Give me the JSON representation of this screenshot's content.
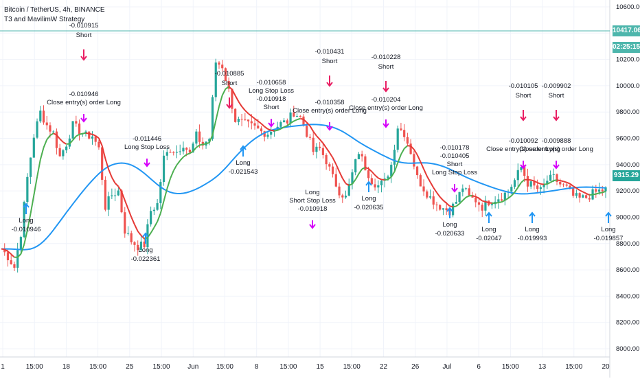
{
  "header": {
    "symbol_line": "Bitcoin / TetherUS, 4h, BINANCE",
    "strategy_line": "T3 and MavilimW Strategy"
  },
  "colors": {
    "bull": "#26a69a",
    "bear": "#ef5350",
    "t3_line": "#2196f3",
    "mav_up": "#4caf50",
    "mav_down": "#e53935",
    "long_arrow": "#2196f3",
    "short_arrow": "#e91e63",
    "exit_marker": "#d500f9",
    "grid": "#f0f3fa",
    "hline": "#4db6ac"
  },
  "price_axis": {
    "ticks": [
      "10600.00",
      "10400.00",
      "10200.00",
      "10000.00",
      "9800.00",
      "9600.00",
      "9400.00",
      "9200.00",
      "9000.00",
      "8800.00",
      "8600.00",
      "8400.00",
      "8200.00",
      "8000.00"
    ],
    "tags": {
      "hline_price": "10417.06",
      "countdown": "02:25:15",
      "last_price": "9315.29"
    }
  },
  "time_axis": {
    "ticks": [
      "1",
      "15:00",
      "18",
      "15:00",
      "25",
      "15:00",
      "Jun",
      "15:00",
      "8",
      "15:00",
      "15",
      "15:00",
      "22",
      "26",
      "Jul",
      "6",
      "15:00",
      "13",
      "15:00",
      "20"
    ]
  },
  "annotations": [
    {
      "kind": "short",
      "lines": [
        "-0.010915",
        "Short"
      ]
    },
    {
      "kind": "exit",
      "lines": [
        "-0.010946",
        "Close entry(s) order Long"
      ]
    },
    {
      "kind": "long",
      "lines": [
        "Long",
        "-0.010946"
      ]
    },
    {
      "kind": "exit",
      "lines": [
        "-0.011446",
        "Long Stop Loss"
      ]
    },
    {
      "kind": "long",
      "lines": [
        "Long",
        "-0.022361"
      ]
    },
    {
      "kind": "short",
      "lines": [
        "-0.010885",
        "Short"
      ]
    },
    {
      "kind": "long",
      "lines": [
        "Long",
        "-0.021543"
      ]
    },
    {
      "kind": "exit",
      "lines": [
        "-0.010658",
        "Long Stop Loss",
        "-0.010918",
        "Short"
      ]
    },
    {
      "kind": "short",
      "lines": [
        "-0.010431",
        "Short"
      ]
    },
    {
      "kind": "exit",
      "lines": [
        "-0.010358",
        "Close entry(s) order Long"
      ]
    },
    {
      "kind": "exit",
      "lines": [
        "Long",
        "Short Stop Loss",
        "-0.010918"
      ]
    },
    {
      "kind": "short",
      "lines": [
        "-0.010228",
        "Short"
      ]
    },
    {
      "kind": "exit",
      "lines": [
        "-0.010204",
        "Close entry(s) order Long"
      ]
    },
    {
      "kind": "long",
      "lines": [
        "Long",
        "-0.020635"
      ]
    },
    {
      "kind": "exit",
      "lines": [
        "-0.010178",
        "-0.010405",
        "Short",
        "Long Stop Loss"
      ]
    },
    {
      "kind": "long",
      "lines": [
        "Long",
        "-0.020633"
      ]
    },
    {
      "kind": "long",
      "lines": [
        "Long",
        "-0.02047"
      ]
    },
    {
      "kind": "short",
      "lines": [
        "-0.010105",
        "Short"
      ]
    },
    {
      "kind": "exit",
      "lines": [
        "-0.010092",
        "Close entry(s) order Long"
      ]
    },
    {
      "kind": "long",
      "lines": [
        "Long",
        "-0.019993"
      ]
    },
    {
      "kind": "short",
      "lines": [
        "-0.009902",
        "Short"
      ]
    },
    {
      "kind": "exit",
      "lines": [
        "-0.009888",
        "Close entry(s) order Long"
      ]
    },
    {
      "kind": "long",
      "lines": [
        "Long",
        "-0.019857"
      ]
    }
  ],
  "chart_data": {
    "type": "candlestick",
    "title": "Bitcoin / TetherUS, 4h, BINANCE",
    "ylim": [
      8000,
      10600
    ],
    "hline": 10417.06,
    "last_price": 9315.29,
    "series": [
      {
        "name": "T3 and MavilimW Strategy"
      }
    ],
    "close_path": [
      [
        0,
        8760
      ],
      [
        2,
        8700
      ],
      [
        4,
        8620
      ],
      [
        6,
        8880
      ],
      [
        8,
        9300
      ],
      [
        10,
        9620
      ],
      [
        12,
        9800
      ],
      [
        14,
        9700
      ],
      [
        16,
        9640
      ],
      [
        18,
        9460
      ],
      [
        20,
        9560
      ],
      [
        22,
        9700
      ],
      [
        24,
        9660
      ],
      [
        26,
        9620
      ],
      [
        28,
        9620
      ],
      [
        30,
        9520
      ],
      [
        32,
        9080
      ],
      [
        34,
        9170
      ],
      [
        36,
        9200
      ],
      [
        38,
        8900
      ],
      [
        40,
        8820
      ],
      [
        42,
        8780
      ],
      [
        44,
        8790
      ],
      [
        46,
        9050
      ],
      [
        48,
        9100
      ],
      [
        50,
        9450
      ],
      [
        52,
        9520
      ],
      [
        54,
        9500
      ],
      [
        56,
        9560
      ],
      [
        58,
        9480
      ],
      [
        60,
        9620
      ],
      [
        62,
        9550
      ],
      [
        64,
        9600
      ],
      [
        66,
        10180
      ],
      [
        68,
        10150
      ],
      [
        70,
        9960
      ],
      [
        72,
        9740
      ],
      [
        74,
        9720
      ],
      [
        76,
        9700
      ],
      [
        78,
        9680
      ],
      [
        80,
        9650
      ],
      [
        82,
        9640
      ],
      [
        84,
        9680
      ],
      [
        86,
        9710
      ],
      [
        88,
        9730
      ],
      [
        90,
        9800
      ],
      [
        92,
        9760
      ],
      [
        94,
        9640
      ],
      [
        96,
        9500
      ],
      [
        98,
        9520
      ],
      [
        100,
        9430
      ],
      [
        102,
        9300
      ],
      [
        104,
        9200
      ],
      [
        106,
        9150
      ],
      [
        108,
        9330
      ],
      [
        110,
        9500
      ],
      [
        112,
        9380
      ],
      [
        114,
        9280
      ],
      [
        116,
        9240
      ],
      [
        118,
        9270
      ],
      [
        120,
        9400
      ],
      [
        122,
        9690
      ],
      [
        124,
        9640
      ],
      [
        126,
        9500
      ],
      [
        128,
        9300
      ],
      [
        130,
        9220
      ],
      [
        132,
        9150
      ],
      [
        134,
        9100
      ],
      [
        136,
        9070
      ],
      [
        138,
        9050
      ],
      [
        140,
        9120
      ],
      [
        142,
        9230
      ],
      [
        144,
        9150
      ],
      [
        146,
        9130
      ],
      [
        148,
        9080
      ],
      [
        150,
        9120
      ],
      [
        152,
        9140
      ],
      [
        154,
        9160
      ],
      [
        156,
        9200
      ],
      [
        158,
        9280
      ],
      [
        160,
        9380
      ],
      [
        162,
        9260
      ],
      [
        164,
        9230
      ],
      [
        166,
        9200
      ],
      [
        168,
        9280
      ],
      [
        170,
        9300
      ],
      [
        172,
        9250
      ],
      [
        174,
        9220
      ],
      [
        176,
        9160
      ],
      [
        178,
        9140
      ],
      [
        180,
        9150
      ],
      [
        182,
        9180
      ],
      [
        184,
        9200
      ],
      [
        186,
        9210
      ]
    ]
  }
}
